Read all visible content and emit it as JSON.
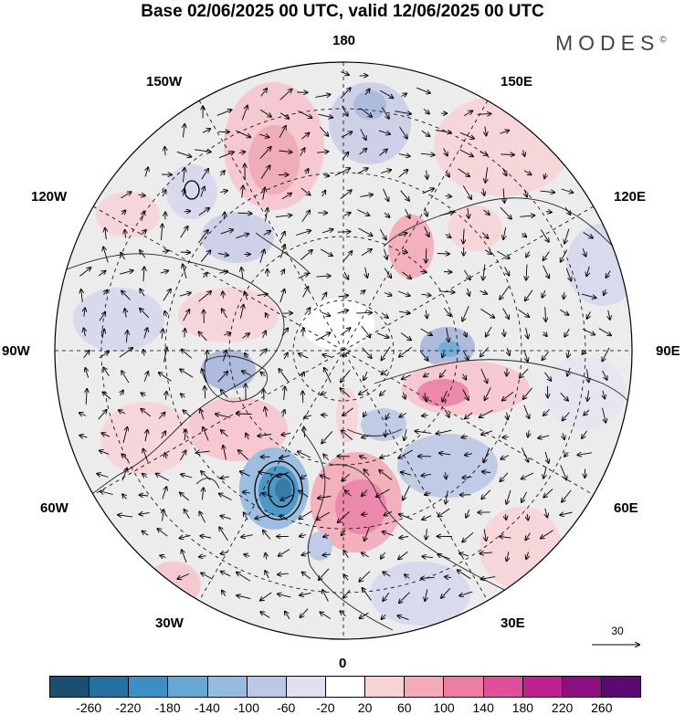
{
  "header": {
    "title": "Base 02/06/2025 00 UTC, valid 12/06/2025 00 UTC",
    "brand": "MODES",
    "brand_mark": "©"
  },
  "map": {
    "projection": "north-polar-stereographic",
    "longitude_labels": {
      "top": "180",
      "bottom": "0",
      "left": "90W",
      "right": "90E",
      "upper_left_1": "150W",
      "upper_left_2": "120W",
      "lower_left_1": "60W",
      "lower_left_2": "30W",
      "upper_right_1": "150E",
      "upper_right_2": "120E",
      "lower_right_1": "60E",
      "lower_right_2": "30E"
    },
    "vector_reference_label": "30",
    "colors": {
      "land_grey": "#e6e6e6",
      "ocean": "#ffffff",
      "grid": "#000000"
    }
  },
  "colorbar": {
    "ticks": [
      "-260",
      "-220",
      "-180",
      "-140",
      "-100",
      "-60",
      "-20",
      "20",
      "60",
      "100",
      "140",
      "180",
      "220",
      "260"
    ],
    "colors": [
      "#1b4f72",
      "#2470a0",
      "#3b8fc4",
      "#66a8d4",
      "#94bbe0",
      "#bcc8e6",
      "#e0e0f0",
      "#ffffff",
      "#f8d4d8",
      "#f4aab8",
      "#ec7ea4",
      "#e0509a",
      "#c02090",
      "#8c1080",
      "#5a0a70"
    ]
  }
}
